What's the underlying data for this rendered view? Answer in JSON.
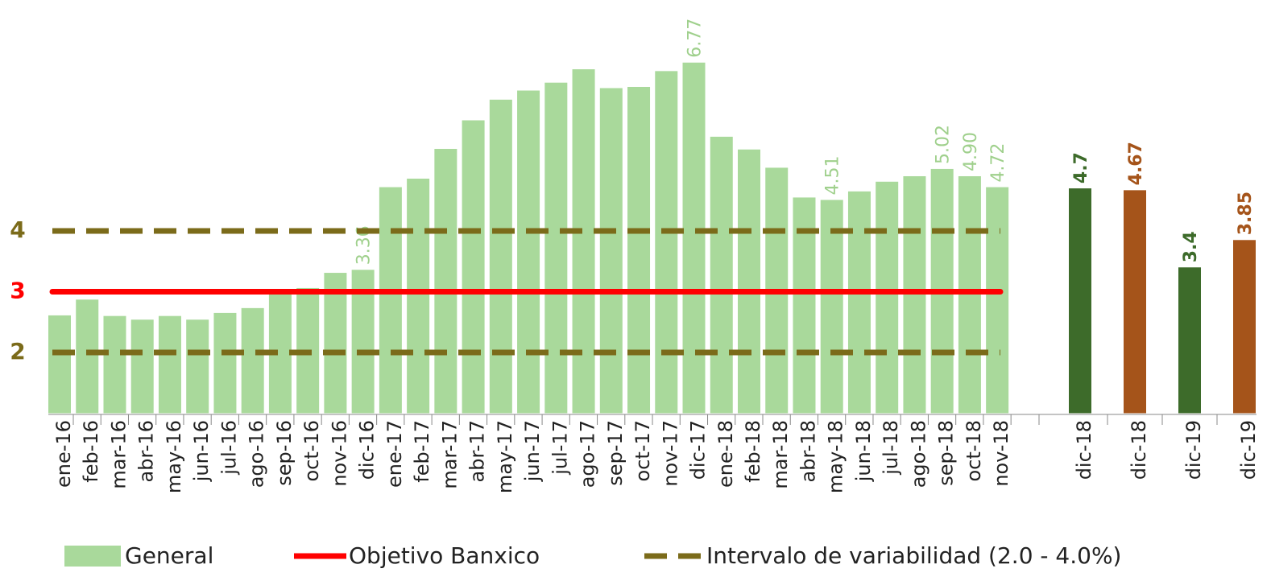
{
  "chart_data": {
    "type": "bar",
    "categories": [
      "ene-16",
      "feb-16",
      "mar-16",
      "abr-16",
      "may-16",
      "jun-16",
      "jul-16",
      "ago-16",
      "sep-16",
      "oct-16",
      "nov-16",
      "dic-16",
      "ene-17",
      "feb-17",
      "mar-17",
      "abr-17",
      "may-17",
      "jun-17",
      "jul-17",
      "ago-17",
      "sep-17",
      "oct-17",
      "nov-17",
      "dic-17",
      "ene-18",
      "feb-18",
      "mar-18",
      "abr-18",
      "may-18",
      "jun-18",
      "jul-18",
      "ago-18",
      "sep-18",
      "oct-18",
      "nov-18"
    ],
    "series": [
      {
        "name": "General",
        "color": "#a9d99b",
        "values": [
          2.61,
          2.87,
          2.6,
          2.54,
          2.6,
          2.54,
          2.65,
          2.73,
          2.97,
          3.06,
          3.31,
          3.36,
          4.72,
          4.86,
          5.35,
          5.82,
          6.16,
          6.31,
          6.44,
          6.66,
          6.35,
          6.37,
          6.63,
          6.77,
          5.55,
          5.34,
          5.04,
          4.55,
          4.51,
          4.65,
          4.81,
          4.9,
          5.02,
          4.9,
          4.72
        ],
        "value_labels": [
          null,
          null,
          null,
          null,
          null,
          null,
          null,
          null,
          null,
          null,
          null,
          "3.36",
          null,
          null,
          null,
          null,
          null,
          null,
          null,
          null,
          null,
          null,
          null,
          "6.77",
          null,
          null,
          null,
          null,
          "4.51",
          null,
          null,
          null,
          "5.02",
          "4.90",
          "4.72"
        ]
      }
    ],
    "extra_bars": {
      "categories": [
        "dic-18",
        "dic-18",
        "dic-19",
        "dic-19"
      ],
      "values": [
        4.7,
        4.67,
        3.4,
        3.85
      ],
      "colors": [
        "#3d6b2a",
        "#a5541a",
        "#3d6b2a",
        "#a5541a"
      ]
    },
    "lines": [
      {
        "name": "Objetivo Banxico",
        "value": 3,
        "color": "#ff0000"
      }
    ],
    "band": {
      "name": "Intervalo de variabilidad (2.0 - 4.0%)",
      "values": [
        2,
        4
      ],
      "color": "#7b6b1a"
    },
    "ylim": [
      1,
      7.8
    ],
    "yticks": [
      2,
      3,
      4
    ]
  }
}
